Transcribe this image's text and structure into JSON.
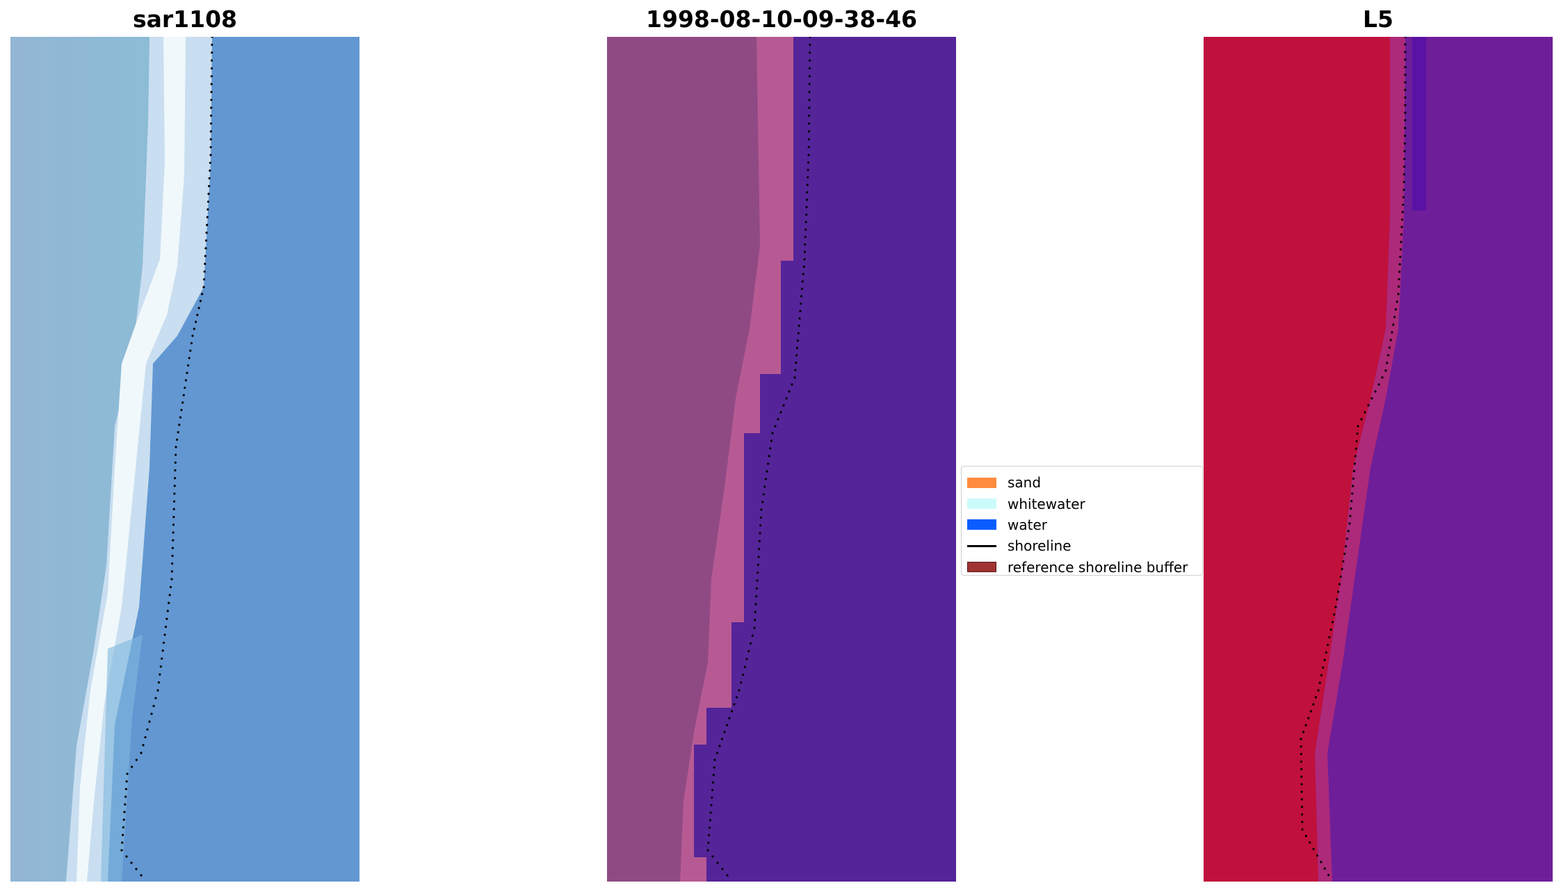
{
  "panels": [
    {
      "title": "sar1108",
      "view": "rgb-image"
    },
    {
      "title": "1998-08-10-09-38-46",
      "view": "classified-image"
    },
    {
      "title": "L5",
      "view": "index-image"
    }
  ],
  "legend": {
    "items": [
      {
        "label": "sand",
        "color": "#ff8c3f",
        "kind": "patch"
      },
      {
        "label": "whitewater",
        "color": "#ccfbfb",
        "kind": "patch"
      },
      {
        "label": "water",
        "color": "#0a5cff",
        "kind": "patch"
      },
      {
        "label": "shoreline",
        "color": "#000000",
        "kind": "line"
      },
      {
        "label": "reference shoreline buffer",
        "color": "#a03232",
        "kind": "patch"
      }
    ]
  }
}
